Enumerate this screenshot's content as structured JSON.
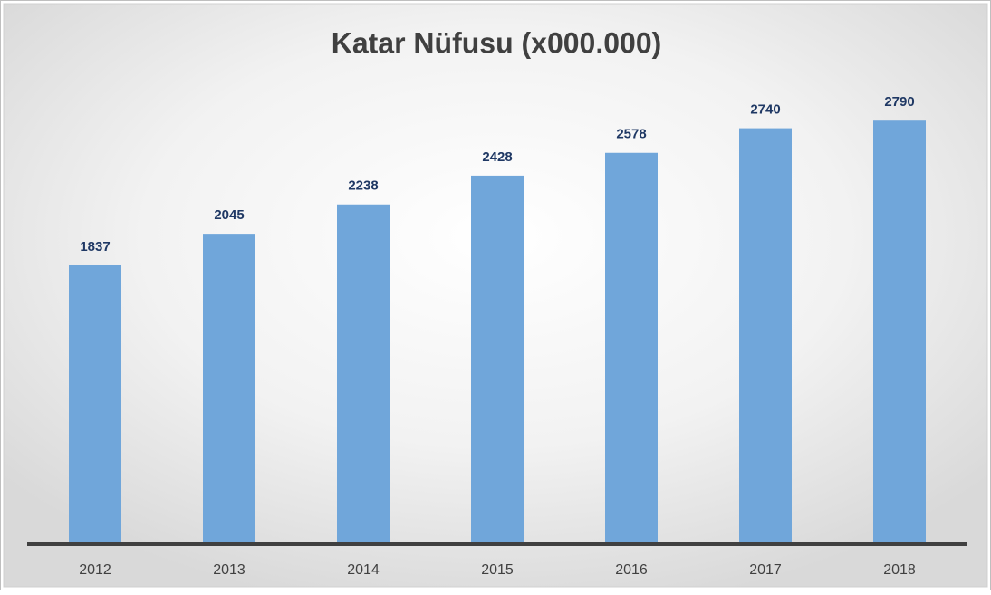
{
  "chart_data": {
    "type": "bar",
    "title": "Katar Nüfusu (x000.000)",
    "categories": [
      "2012",
      "2013",
      "2014",
      "2015",
      "2016",
      "2017",
      "2018"
    ],
    "values": [
      1837,
      2045,
      2238,
      2428,
      2578,
      2740,
      2790
    ],
    "color": "#70a6da",
    "ylim": [
      0,
      3000
    ]
  }
}
